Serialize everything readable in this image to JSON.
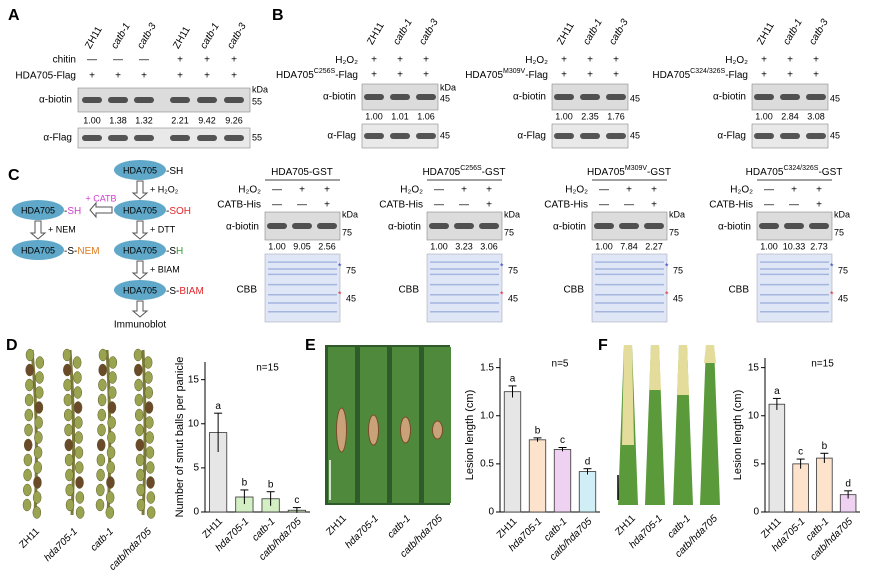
{
  "figure": {
    "A": {
      "label": "A",
      "lanes": [
        "ZH11",
        "catb-1",
        "catb-3",
        "ZH11",
        "catb-1",
        "catb-3"
      ],
      "rows": [
        {
          "name": "chitin",
          "marks": [
            "—",
            "—",
            "—",
            "+",
            "+",
            "+"
          ]
        },
        {
          "name": "HDA705-Flag",
          "marks": [
            "+",
            "+",
            "+",
            "+",
            "+",
            "+"
          ]
        }
      ],
      "blots": [
        {
          "name": "α-biotin",
          "unit": "kDa",
          "marker": "55",
          "quant": [
            "1.00",
            "1.38",
            "1.32",
            "2.21",
            "9.42",
            "9.26"
          ]
        },
        {
          "name": "α-Flag",
          "marker": "55"
        }
      ]
    },
    "B": {
      "label": "B",
      "sets": [
        {
          "lanes": [
            "ZH11",
            "catb-1",
            "catb-3"
          ],
          "rows": [
            {
              "name": [
                {
                  "t": "H₂O₂"
                }
              ],
              "marks": [
                "+",
                "+",
                "+"
              ]
            },
            {
              "name": [
                {
                  "t": "HDA705"
                },
                {
                  "t": "C256S",
                  "sup": true
                },
                {
                  "t": "-Flag"
                }
              ],
              "marks": [
                "+",
                "+",
                "+"
              ]
            }
          ],
          "blots": [
            {
              "name": "α-biotin",
              "unit": "kDa",
              "marker": "45",
              "quant": [
                "1.00",
                "1.01",
                "1.06"
              ]
            },
            {
              "name": "α-Flag",
              "marker": "45"
            }
          ]
        },
        {
          "lanes": [
            "ZH11",
            "catb-1",
            "catb-3"
          ],
          "rows": [
            {
              "name": [
                {
                  "t": "H₂O₂"
                }
              ],
              "marks": [
                "+",
                "+",
                "+"
              ]
            },
            {
              "name": [
                {
                  "t": "HDA705"
                },
                {
                  "t": "M309V",
                  "sup": true
                },
                {
                  "t": "-Flag"
                }
              ],
              "marks": [
                "+",
                "+",
                "+"
              ]
            }
          ],
          "blots": [
            {
              "name": "α-biotin",
              "marker": "45",
              "quant": [
                "1.00",
                "2.35",
                "1.76"
              ]
            },
            {
              "name": "α-Flag",
              "marker": "45"
            }
          ]
        },
        {
          "lanes": [
            "ZH11",
            "catb-1",
            "catb-3"
          ],
          "rows": [
            {
              "name": [
                {
                  "t": "H₂O₂"
                }
              ],
              "marks": [
                "+",
                "+",
                "+"
              ]
            },
            {
              "name": [
                {
                  "t": "HDA705"
                },
                {
                  "t": "C324/326S",
                  "sup": true
                },
                {
                  "t": "-Flag"
                }
              ],
              "marks": [
                "+",
                "+",
                "+"
              ]
            }
          ],
          "blots": [
            {
              "name": "α-biotin",
              "marker": "45",
              "quant": [
                "1.00",
                "2.84",
                "3.08"
              ]
            },
            {
              "name": "α-Flag",
              "marker": "45"
            }
          ]
        }
      ]
    },
    "C": {
      "label": "C",
      "nodes": [
        {
          "protein": "HDA705",
          "parts": [
            {
              "t": "-SH"
            }
          ]
        },
        {
          "protein": "HDA705",
          "parts": [
            {
              "t": "-"
            },
            {
              "t": "SOH",
              "color": "#e3262b"
            }
          ]
        },
        {
          "protein": "HDA705",
          "parts": [
            {
              "t": "-"
            },
            {
              "t": "SH",
              "color": "#d23bd2"
            }
          ]
        },
        {
          "protein": "HDA705",
          "parts": [
            {
              "t": "-S"
            },
            {
              "t": "H",
              "color": "#2ca02c"
            }
          ]
        },
        {
          "protein": "HDA705",
          "parts": [
            {
              "t": "-S-"
            },
            {
              "t": "NEM",
              "color": "#e07b1f"
            }
          ]
        },
        {
          "protein": "HDA705",
          "parts": [
            {
              "t": "-S-"
            },
            {
              "t": "BIAM",
              "color": "#e3262b"
            }
          ]
        }
      ],
      "edges": [
        {
          "from": 0,
          "to": 1,
          "label": "+ H₂O₂"
        },
        {
          "from": 1,
          "to": 2,
          "label": "+ CATB",
          "color": "#d23bd2"
        },
        {
          "from": 1,
          "to": 3,
          "label": "+ DTT"
        },
        {
          "from": 2,
          "to": 4,
          "label": "+ NEM"
        },
        {
          "from": 3,
          "to": 5,
          "label": "+ BIAM"
        }
      ],
      "end": "Immunoblot",
      "blots": [
        {
          "title": [
            {
              "t": "HDA705-GST"
            }
          ],
          "rows": [
            {
              "name": "H₂O₂",
              "marks": [
                "—",
                "+",
                "+"
              ]
            },
            {
              "name": "CATB-His",
              "marks": [
                "—",
                "—",
                "+"
              ]
            }
          ],
          "probe": {
            "name": "α-biotin",
            "unit": "kDa",
            "marker": "75",
            "quant": [
              "1.00",
              "9.05",
              "2.56"
            ]
          },
          "stain": {
            "name": "CBB",
            "markers": [
              "75",
              "45"
            ],
            "stars": [
              "*",
              "*"
            ]
          }
        },
        {
          "title": [
            {
              "t": "HDA705"
            },
            {
              "t": "C256S",
              "sup": true
            },
            {
              "t": "-GST"
            }
          ],
          "rows": [
            {
              "name": "H₂O₂",
              "marks": [
                "—",
                "+",
                "+"
              ]
            },
            {
              "name": "CATB-His",
              "marks": [
                "—",
                "—",
                "+"
              ]
            }
          ],
          "probe": {
            "name": "α-biotin",
            "unit": "kDa",
            "marker": "75",
            "quant": [
              "1.00",
              "3.23",
              "3.06"
            ]
          },
          "stain": {
            "name": "CBB",
            "markers": [
              "75",
              "45"
            ],
            "stars": [
              "*",
              "*"
            ]
          }
        },
        {
          "title": [
            {
              "t": "HDA705"
            },
            {
              "t": "M309V",
              "sup": true
            },
            {
              "t": "-GST"
            }
          ],
          "rows": [
            {
              "name": "H₂O₂",
              "marks": [
                "—",
                "+",
                "+"
              ]
            },
            {
              "name": "CATB-His",
              "marks": [
                "—",
                "—",
                "+"
              ]
            }
          ],
          "probe": {
            "name": "α-biotin",
            "unit": "kDa",
            "marker": "75",
            "quant": [
              "1.00",
              "7.84",
              "2.27"
            ]
          },
          "stain": {
            "name": "CBB",
            "markers": [
              "75",
              "45"
            ],
            "stars": [
              "*",
              "*"
            ]
          }
        },
        {
          "title": [
            {
              "t": "HDA705"
            },
            {
              "t": "C324/326S",
              "sup": true
            },
            {
              "t": "-GST"
            }
          ],
          "rows": [
            {
              "name": "H₂O₂",
              "marks": [
                "—",
                "+",
                "+"
              ]
            },
            {
              "name": "CATB-His",
              "marks": [
                "—",
                "—",
                "+"
              ]
            }
          ],
          "probe": {
            "name": "α-biotin",
            "unit": "kDa",
            "marker": "75",
            "quant": [
              "1.00",
              "10.33",
              "2.73"
            ]
          },
          "stain": {
            "name": "CBB",
            "markers": [
              "75",
              "45"
            ],
            "stars": [
              "*",
              "*"
            ]
          }
        }
      ]
    },
    "D": {
      "label": "D",
      "photo_labels": [
        "ZH11",
        "hda705-1",
        "catb-1",
        "catb/hda705"
      ],
      "chart": {
        "type": "bar",
        "n_label": "n=15",
        "ylabel": "Number of smut balls per panicle",
        "categories": [
          "ZH11",
          "hda705-1",
          "catb-1",
          "catb/hda705"
        ],
        "italic": [
          false,
          true,
          true,
          true
        ],
        "values": [
          9,
          1.7,
          1.5,
          0.2
        ],
        "errors": [
          2.2,
          0.8,
          0.8,
          0.3
        ],
        "letters": [
          "a",
          "b",
          "b",
          "c"
        ],
        "colors": [
          "#e6e6e6",
          "#d4efc4",
          "#d4efc4",
          "#d4efc4"
        ],
        "ylim": [
          0,
          17
        ],
        "yticks": [
          0,
          5,
          10,
          15
        ]
      }
    },
    "E": {
      "label": "E",
      "photo_labels": [
        "ZH11",
        "hda705-1",
        "catb-1",
        "catb/hda705"
      ],
      "chart": {
        "type": "bar",
        "n_label": "n=5",
        "ylabel": "Lesion length (cm)",
        "categories": [
          "ZH11",
          "hda705-1",
          "catb-1",
          "catb/hda705"
        ],
        "italic": [
          false,
          true,
          true,
          true
        ],
        "values": [
          1.25,
          0.75,
          0.65,
          0.42
        ],
        "errors": [
          0.06,
          0.02,
          0.02,
          0.03
        ],
        "letters": [
          "a",
          "b",
          "c",
          "d"
        ],
        "colors": [
          "#e6e6e6",
          "#fde2cc",
          "#efd2f2",
          "#cfeef6"
        ],
        "ylim": [
          0,
          1.6
        ],
        "yticks": [
          0,
          0.5,
          {
            "value": 1,
            "label": "1.0"
          },
          1.5
        ]
      }
    },
    "F": {
      "label": "F",
      "photo_labels": [
        "ZH11",
        "hda705-1",
        "catb-1",
        "catb/hda705"
      ],
      "chart": {
        "type": "bar",
        "n_label": "n=15",
        "ylabel": "Lesion length (cm)",
        "categories": [
          "ZH11",
          "hda705-1",
          "catb-1",
          "catb/hda705"
        ],
        "italic": [
          false,
          true,
          true,
          true
        ],
        "values": [
          11.2,
          5.0,
          5.6,
          1.8
        ],
        "errors": [
          0.6,
          0.5,
          0.5,
          0.4
        ],
        "letters": [
          "a",
          "c",
          "b",
          "d"
        ],
        "colors": [
          "#e6e6e6",
          "#fde2cc",
          "#fde2cc",
          "#efd2f2"
        ],
        "ylim": [
          0,
          16
        ],
        "yticks": [
          0,
          5,
          10,
          15
        ]
      }
    }
  }
}
